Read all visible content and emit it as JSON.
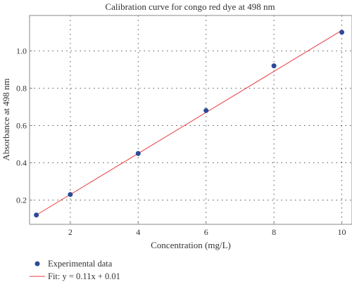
{
  "chart_data": {
    "type": "scatter",
    "title": "Calibration curve for congo red dye at 498 nm",
    "xlabel": "Concentration (mg/L)",
    "ylabel": "Absorbance at 498 nm",
    "xlim": [
      0.8,
      10.3
    ],
    "ylim": [
      0.07,
      1.19
    ],
    "x_ticks": [
      "2",
      "4",
      "6",
      "8",
      "10"
    ],
    "y_ticks": [
      "0.2",
      "0.4",
      "0.6",
      "0.8",
      "1.0"
    ],
    "grid": true,
    "legend_position": "bottom-left",
    "series": [
      {
        "name": "Experimental data",
        "kind": "points",
        "color": "#2b4a9a",
        "x": [
          1,
          2,
          4,
          6,
          8,
          10
        ],
        "y": [
          0.12,
          0.23,
          0.45,
          0.68,
          0.92,
          1.1
        ]
      },
      {
        "name": "Fit: y = 0.11x + 0.01",
        "kind": "line",
        "color": "#e8383d",
        "slope": 0.11,
        "intercept": 0.01,
        "x_range": [
          1,
          10
        ]
      }
    ]
  }
}
